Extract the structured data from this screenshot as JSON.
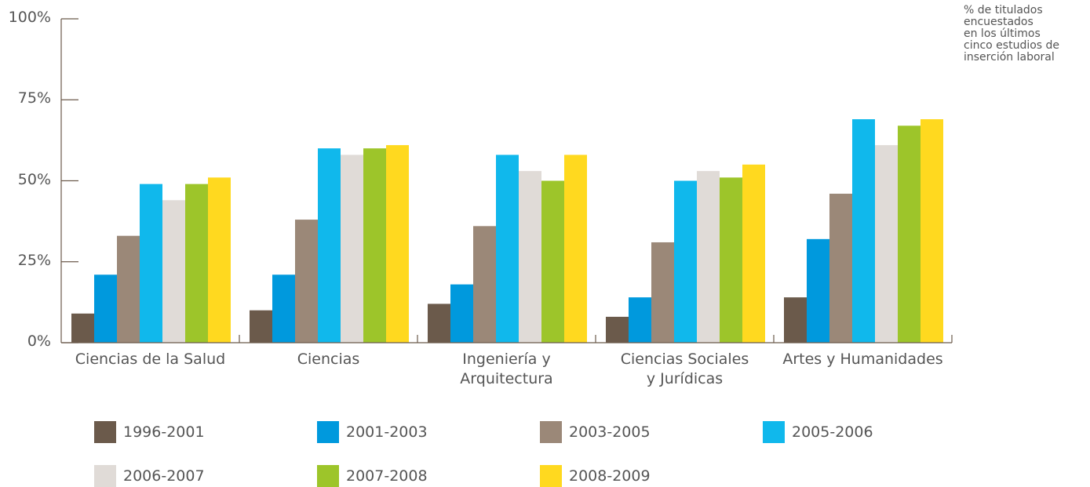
{
  "chart_data": {
    "type": "bar",
    "annotation": "% de titulados\nencuestados\nen los últimos\ncinco estudios de\ninserción laboral",
    "categories": [
      "Ciencias de la Salud",
      "Ciencias",
      "Ingeniería y\nArquitectura",
      "Ciencias Sociales\ny Jurídicas",
      "Artes y Humanidades"
    ],
    "series": [
      {
        "name": "1996-2001",
        "color": "#6b5a4b",
        "values": [
          9,
          10,
          12,
          8,
          14
        ]
      },
      {
        "name": "2001-2003",
        "color": "#0099dd",
        "values": [
          21,
          21,
          18,
          14,
          32
        ]
      },
      {
        "name": "2003-2005",
        "color": "#9b8878",
        "values": [
          33,
          38,
          36,
          31,
          46
        ]
      },
      {
        "name": "2005-2006",
        "color": "#10b8ec",
        "values": [
          49,
          60,
          58,
          50,
          69
        ]
      },
      {
        "name": "2006-2007",
        "color": "#e0dbd7",
        "values": [
          44,
          58,
          53,
          53,
          61
        ]
      },
      {
        "name": "2007-2008",
        "color": "#9dc52a",
        "values": [
          49,
          60,
          50,
          51,
          67
        ]
      },
      {
        "name": "2008-2009",
        "color": "#ffd91f",
        "values": [
          51,
          61,
          58,
          55,
          69
        ]
      }
    ],
    "ylim": [
      0,
      100
    ],
    "yticks": [
      {
        "value": 0,
        "label": "0%"
      },
      {
        "value": 25,
        "label": "25%"
      },
      {
        "value": 50,
        "label": "50%"
      },
      {
        "value": 75,
        "label": "75%"
      },
      {
        "value": 100,
        "label": "100%"
      }
    ],
    "legend": "bottom"
  }
}
